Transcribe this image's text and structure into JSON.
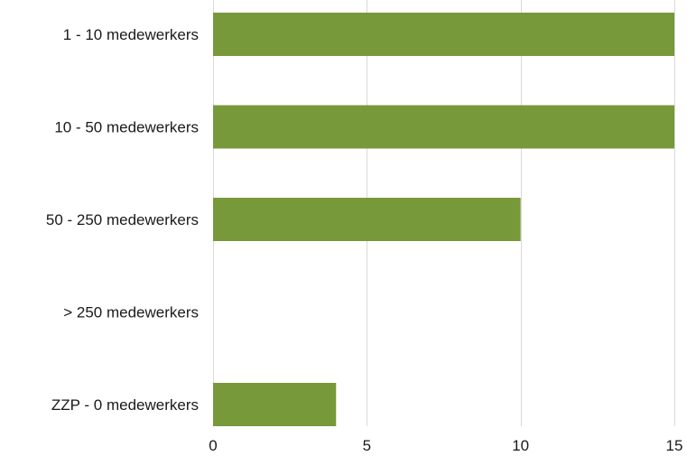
{
  "chart_data": {
    "type": "bar",
    "orientation": "horizontal",
    "categories": [
      "1 - 10 medewerkers",
      "10 - 50 medewerkers",
      "50 - 250 medewerkers",
      "> 250 medewerkers",
      "ZZP - 0 medewerkers"
    ],
    "values": [
      15,
      15,
      10,
      0,
      4
    ],
    "xlim": [
      0,
      15
    ],
    "xticks": [
      0,
      5,
      10,
      15
    ],
    "title": "",
    "xlabel": "",
    "ylabel": "",
    "grid": true,
    "legend": "none",
    "bar_color": "#77993a"
  }
}
